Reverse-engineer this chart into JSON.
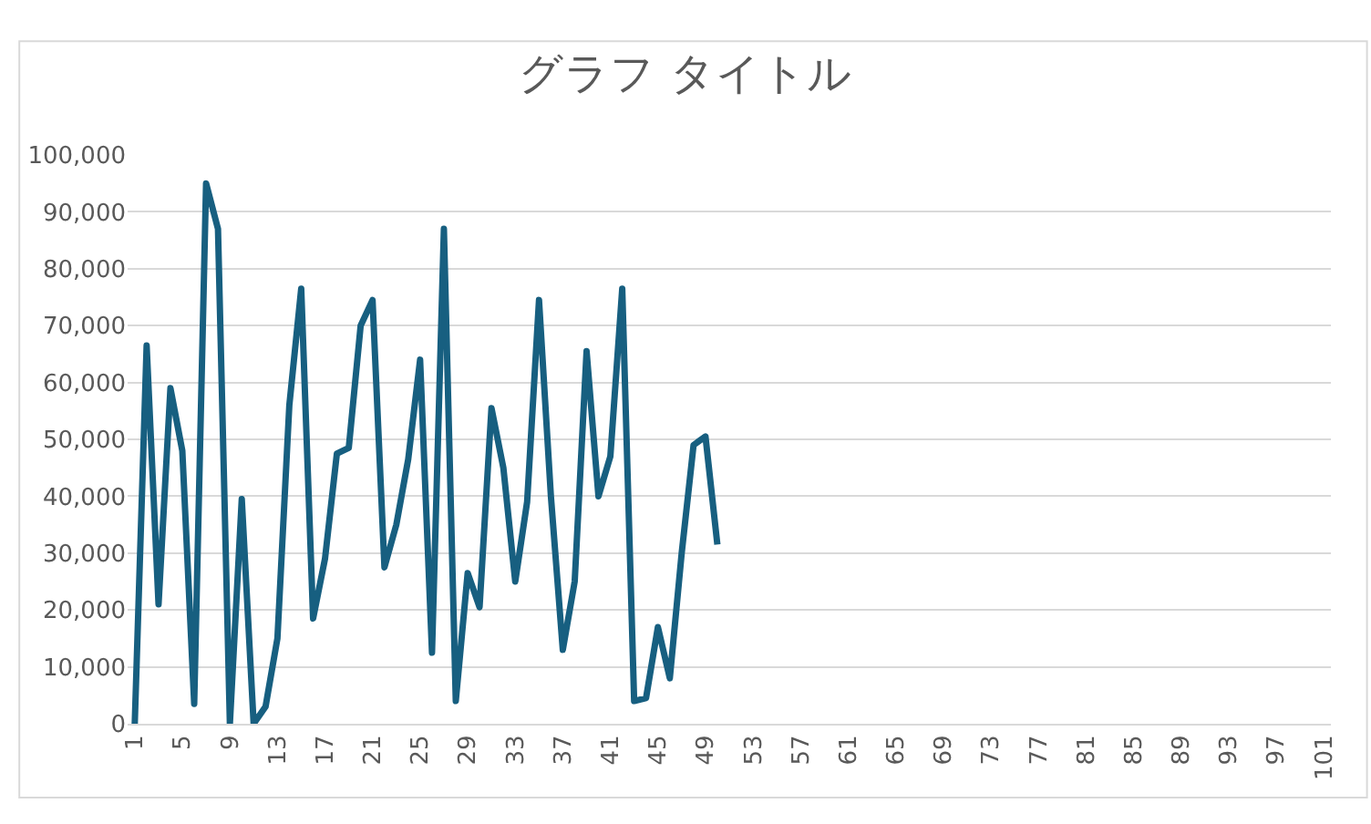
{
  "chart_data": {
    "type": "line",
    "title": "グラフ タイトル",
    "categories": [
      "1",
      null,
      null,
      null,
      "5",
      null,
      null,
      null,
      "9",
      null,
      null,
      null,
      "13",
      null,
      null,
      null,
      "17",
      null,
      null,
      null,
      "21",
      null,
      null,
      null,
      "25",
      null,
      null,
      null,
      "29",
      null,
      null,
      null,
      "33",
      null,
      null,
      null,
      "37",
      null,
      null,
      null,
      "41",
      null,
      null,
      null,
      "45",
      null,
      null,
      null,
      "49",
      null,
      null,
      null,
      "53",
      null,
      null,
      null,
      "57",
      null,
      null,
      null,
      "61",
      null,
      null,
      null,
      "65",
      null,
      null,
      null,
      "69",
      null,
      null,
      null,
      "73",
      null,
      null,
      null,
      "77",
      null,
      null,
      null,
      "81",
      null,
      null,
      null,
      "85",
      null,
      null,
      null,
      "89",
      null,
      null,
      null,
      "93",
      null,
      null,
      null,
      "97",
      null,
      null,
      null,
      "101"
    ],
    "series": [
      {
        "color": "#175f80",
        "values": [
          0,
          66500,
          21000,
          59000,
          48000,
          3500,
          95000,
          87000,
          0,
          39500,
          0,
          3000,
          15000,
          56000,
          76500,
          18500,
          29000,
          47500,
          48500,
          70000,
          74500,
          27500,
          35000,
          46500,
          64000,
          12500,
          87000,
          4000,
          26500,
          20500,
          55500,
          45000,
          25000,
          39000,
          74500,
          40000,
          13000,
          25000,
          65500,
          40000,
          47000,
          76500,
          4000,
          4500,
          17000,
          8000,
          30000,
          49000,
          50500,
          31500,
          null,
          null,
          null,
          null,
          null,
          null,
          null,
          null,
          null,
          null,
          null,
          null,
          null,
          null,
          null,
          null,
          null,
          null,
          null,
          null,
          null,
          null,
          null,
          null,
          null,
          null,
          null,
          null,
          null,
          null,
          null,
          null,
          null,
          null,
          null,
          null,
          null,
          null,
          null,
          null,
          null,
          null,
          null,
          null,
          null,
          null,
          null,
          null,
          null,
          null,
          null
        ]
      }
    ],
    "ylim": [
      0,
      100000
    ],
    "yticks": [
      {
        "value": 0,
        "label": "0"
      },
      {
        "value": 10000,
        "label": "10,000"
      },
      {
        "value": 20000,
        "label": "20,000"
      },
      {
        "value": 30000,
        "label": "30,000"
      },
      {
        "value": 40000,
        "label": "40,000"
      },
      {
        "value": 50000,
        "label": "50,000"
      },
      {
        "value": 60000,
        "label": "60,000"
      },
      {
        "value": 70000,
        "label": "70,000"
      },
      {
        "value": 80000,
        "label": "80,000"
      },
      {
        "value": 90000,
        "label": "90,000"
      },
      {
        "value": 100000,
        "label": "100,000"
      }
    ],
    "grid": "y",
    "marker": "none",
    "line_style": "solid"
  }
}
